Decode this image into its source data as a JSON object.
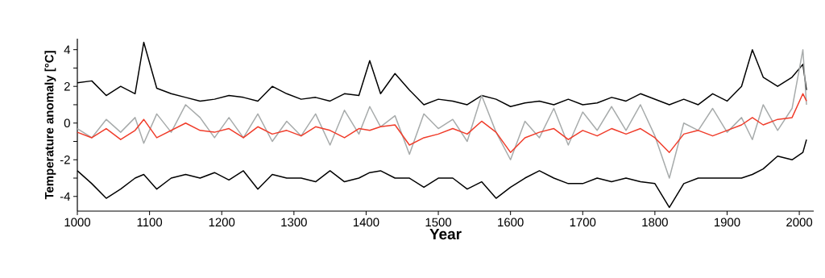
{
  "chart_data": {
    "type": "line",
    "xlabel": "Year",
    "ylabel": "Temperature anomaly [°C]",
    "x": [
      1000,
      1020,
      1040,
      1060,
      1080,
      1092,
      1110,
      1130,
      1150,
      1170,
      1190,
      1210,
      1230,
      1250,
      1270,
      1290,
      1310,
      1330,
      1350,
      1370,
      1390,
      1405,
      1420,
      1440,
      1460,
      1480,
      1500,
      1520,
      1540,
      1560,
      1580,
      1600,
      1620,
      1640,
      1660,
      1680,
      1700,
      1720,
      1740,
      1760,
      1780,
      1800,
      1820,
      1840,
      1860,
      1880,
      1900,
      1920,
      1935,
      1950,
      1970,
      1990,
      2005,
      2010
    ],
    "series": [
      {
        "color": "#000000",
        "values": [
          2.2,
          2.3,
          1.5,
          2.0,
          1.6,
          4.4,
          1.9,
          1.6,
          1.4,
          1.2,
          1.3,
          1.5,
          1.4,
          1.2,
          2.0,
          1.6,
          1.3,
          1.4,
          1.2,
          1.6,
          1.5,
          3.4,
          1.6,
          2.7,
          1.8,
          1.0,
          1.3,
          1.2,
          1.0,
          1.5,
          1.3,
          0.9,
          1.1,
          1.2,
          1.0,
          1.3,
          1.0,
          1.1,
          1.4,
          1.2,
          1.6,
          1.3,
          1.0,
          1.3,
          1.0,
          1.6,
          1.2,
          2.0,
          4.0,
          2.5,
          2.0,
          2.5,
          3.2,
          1.8
        ]
      },
      {
        "color": "#000000",
        "values": [
          -2.6,
          -3.3,
          -4.1,
          -3.6,
          -3.0,
          -2.8,
          -3.6,
          -3.0,
          -2.8,
          -3.0,
          -2.7,
          -3.1,
          -2.6,
          -3.6,
          -2.8,
          -3.0,
          -3.0,
          -3.2,
          -2.6,
          -3.2,
          -3.0,
          -2.7,
          -2.6,
          -3.0,
          -3.0,
          -3.5,
          -3.0,
          -3.0,
          -3.6,
          -3.2,
          -4.1,
          -3.5,
          -3.0,
          -2.6,
          -3.0,
          -3.3,
          -3.3,
          -3.0,
          -3.2,
          -3.0,
          -3.2,
          -3.3,
          -4.6,
          -3.3,
          -3.0,
          -3.0,
          -3.0,
          -3.0,
          -2.8,
          -2.5,
          -1.8,
          -2.0,
          -1.6,
          -0.9
        ]
      },
      {
        "color": "#a7abab",
        "values": [
          -0.3,
          -0.8,
          0.2,
          -0.5,
          0.3,
          -1.1,
          0.5,
          -0.5,
          1.0,
          0.3,
          -0.8,
          0.3,
          -0.8,
          0.5,
          -1.0,
          0.1,
          -0.7,
          0.5,
          -1.2,
          0.7,
          -0.6,
          0.9,
          -0.2,
          0.4,
          -1.7,
          0.5,
          -0.3,
          0.2,
          -1.0,
          1.5,
          -0.5,
          -2.0,
          0.1,
          -0.8,
          0.8,
          -1.2,
          0.6,
          -0.4,
          0.9,
          -0.4,
          1.0,
          -0.7,
          -3.0,
          0.0,
          -0.4,
          0.8,
          -0.5,
          0.3,
          -0.9,
          1.0,
          -0.4,
          0.8,
          4.0,
          1.0
        ]
      },
      {
        "color": "#f03c2a",
        "values": [
          -0.5,
          -0.8,
          -0.3,
          -0.9,
          -0.4,
          0.2,
          -0.8,
          -0.4,
          0.0,
          -0.4,
          -0.5,
          -0.3,
          -0.8,
          -0.2,
          -0.6,
          -0.4,
          -0.7,
          -0.2,
          -0.4,
          -0.8,
          -0.3,
          -0.4,
          -0.2,
          -0.1,
          -1.2,
          -0.8,
          -0.6,
          -0.3,
          -0.6,
          0.1,
          -0.5,
          -1.6,
          -0.8,
          -0.5,
          -0.3,
          -0.9,
          -0.4,
          -0.7,
          -0.3,
          -0.6,
          -0.3,
          -0.8,
          -1.6,
          -0.6,
          -0.4,
          -0.7,
          -0.4,
          -0.1,
          0.3,
          -0.1,
          0.2,
          0.3,
          1.6,
          1.2
        ]
      }
    ],
    "xlim": [
      1000,
      2020
    ],
    "ylim": [
      -4.8,
      4.6
    ],
    "xticks": [
      1000,
      1100,
      1200,
      1300,
      1400,
      1500,
      1600,
      1700,
      1800,
      1900,
      2000
    ],
    "yticks": [
      -4,
      {
        "value": -3,
        "label": null
      },
      -2,
      {
        "value": -1,
        "label": null
      },
      0,
      {
        "value": 1,
        "label": null
      },
      2,
      {
        "value": 3,
        "label": null
      },
      4
    ],
    "marker": "none",
    "line_style": "solid"
  }
}
